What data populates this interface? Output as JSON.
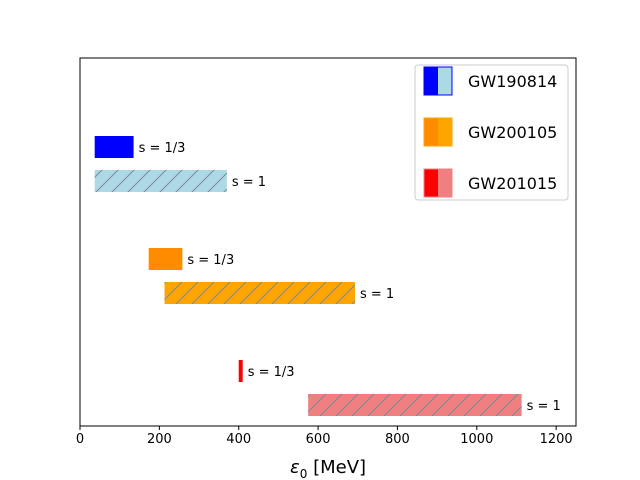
{
  "chart_data": {
    "type": "bar",
    "orientation": "horizontal-range",
    "xlabel_main": "ε",
    "xlabel_sub": "0",
    "xlabel_unit": " [MeV]",
    "xlim": [
      0,
      1250
    ],
    "xticks": [
      0,
      200,
      400,
      600,
      800,
      1000,
      1200
    ],
    "xtick_labels": [
      "0",
      "200",
      "400",
      "600",
      "800",
      "1000",
      "1200"
    ],
    "y_ticks_shown": false,
    "grid": false,
    "legend_position": "top-right",
    "groups": [
      {
        "name": "GW190814",
        "bars": [
          {
            "label": "s = 1/3",
            "start": 37,
            "end": 135,
            "color": "#0000ff",
            "hatch": false
          },
          {
            "label": "s = 1",
            "start": 37,
            "end": 370,
            "color": "#add8e6",
            "hatch": true
          }
        ]
      },
      {
        "name": "GW200105",
        "bars": [
          {
            "label": "s = 1/3",
            "start": 173,
            "end": 258,
            "color": "#ff8c00",
            "hatch": false
          },
          {
            "label": "s = 1",
            "start": 213,
            "end": 693,
            "color": "#ffa500",
            "hatch": true
          }
        ]
      },
      {
        "name": "GW201015",
        "bars": [
          {
            "label": "s = 1/3",
            "start": 400,
            "end": 410,
            "color": "#ff0000",
            "hatch": false
          },
          {
            "label": "s = 1",
            "start": 575,
            "end": 1113,
            "color": "#f08080",
            "hatch": true
          }
        ]
      }
    ],
    "legend": [
      {
        "label": "GW190814",
        "color_a": "#0000ff",
        "color_b": "#add8e6",
        "edge": "#0000ff"
      },
      {
        "label": "GW200105",
        "color_a": "#ff8c00",
        "color_b": "#ffa500",
        "edge": "#ffa500"
      },
      {
        "label": "GW201015",
        "color_a": "#ff0000",
        "color_b": "#f08080",
        "edge": "#f08080"
      }
    ]
  }
}
